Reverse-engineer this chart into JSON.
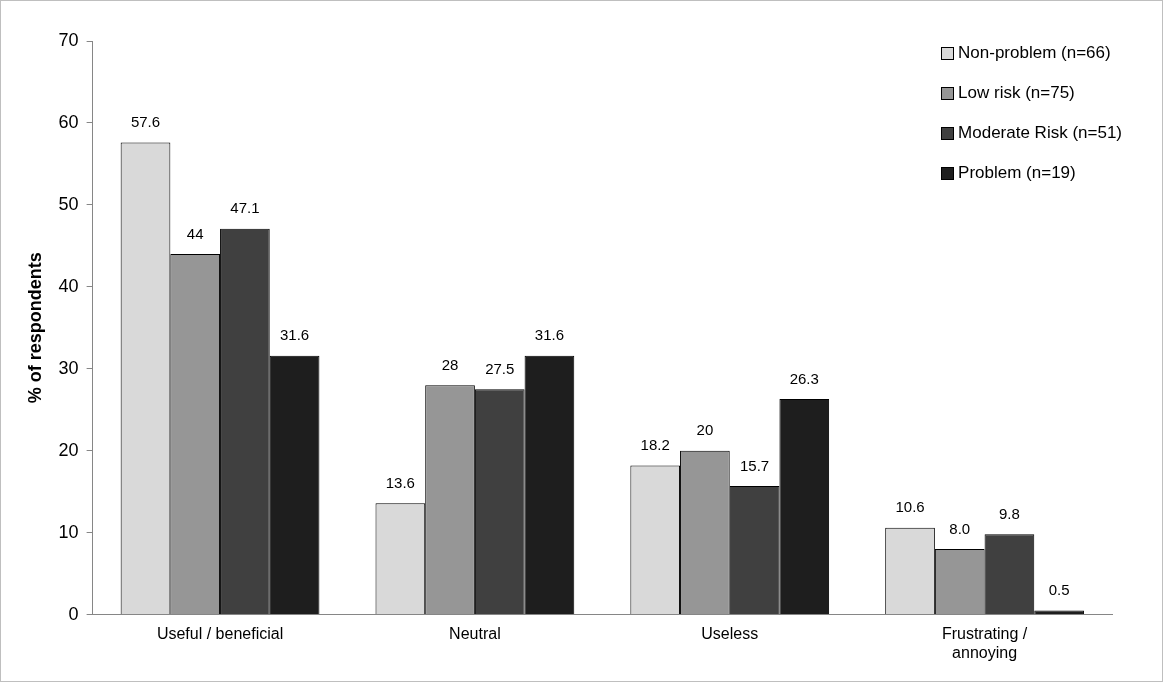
{
  "chart_data": {
    "type": "bar",
    "ylabel": "% of respondents",
    "categories": [
      "Useful / beneficial",
      "Neutral",
      "Useless",
      "Frustrating / annoying"
    ],
    "series": [
      {
        "name": "Non-problem (n=66)",
        "color": "#d9d9d9",
        "values": [
          57.6,
          13.6,
          18.2,
          10.6
        ],
        "value_labels": [
          "57.6",
          "13.6",
          "18.2",
          "10.6"
        ]
      },
      {
        "name": "Low risk (n=75)",
        "color": "#969696",
        "values": [
          44,
          28,
          20,
          8.0
        ],
        "value_labels": [
          "44",
          "28",
          "20",
          "8.0"
        ]
      },
      {
        "name": "Moderate Risk (n=51)",
        "color": "#404040",
        "values": [
          47.1,
          27.5,
          15.7,
          9.8
        ],
        "value_labels": [
          "47.1",
          "27.5",
          "15.7",
          "9.8"
        ]
      },
      {
        "name": "Problem (n=19)",
        "color": "#1e1e1e",
        "values": [
          31.6,
          31.6,
          26.3,
          0.5
        ],
        "value_labels": [
          "31.6",
          "31.6",
          "26.3",
          "0.5"
        ]
      }
    ],
    "ylim": [
      0,
      70
    ],
    "yticks": [
      0,
      10,
      20,
      30,
      40,
      50,
      60,
      70
    ],
    "grid": false,
    "legend": "top right"
  }
}
